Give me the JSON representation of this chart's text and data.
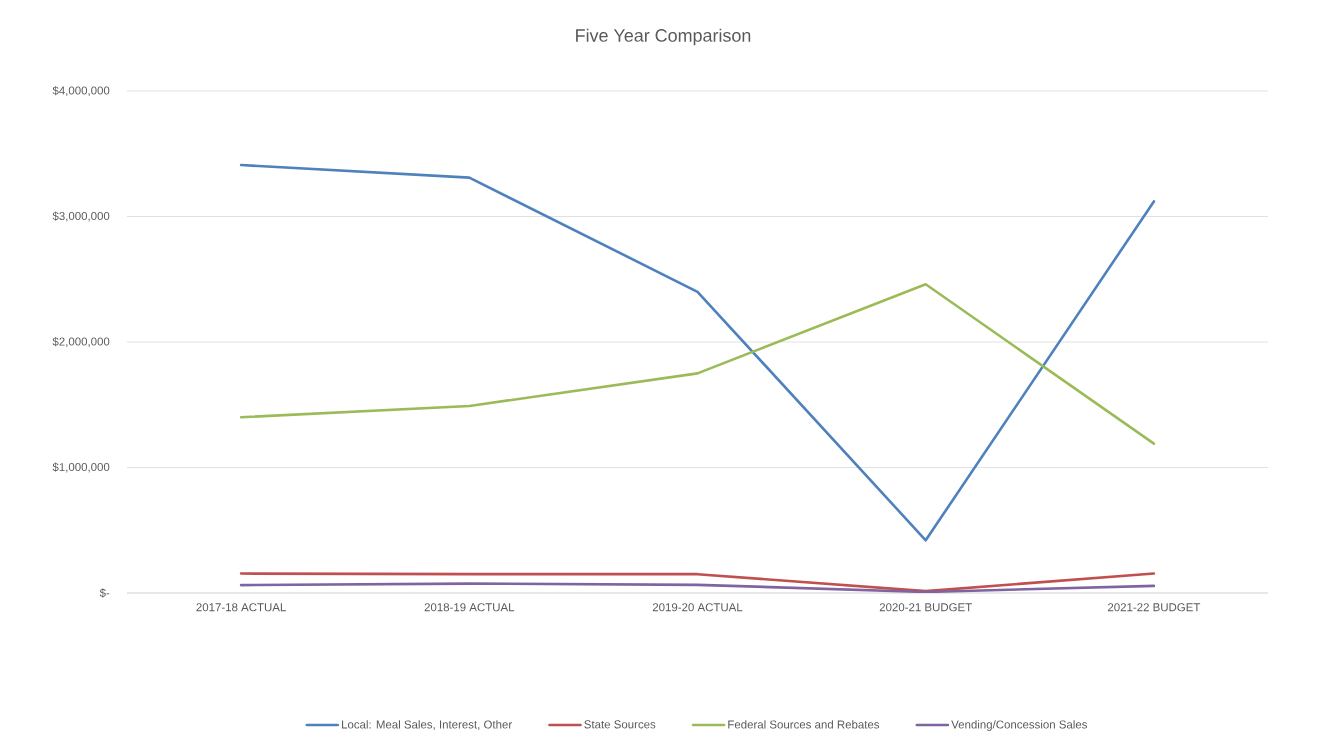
{
  "chart_data": {
    "type": "line",
    "title": "Five Year Comparison",
    "categories": [
      "2017-18 ACTUAL",
      "2018-19 ACTUAL",
      "2019-20 ACTUAL",
      "2020-21 BUDGET",
      "2021-22 BUDGET"
    ],
    "series": [
      {
        "name": "Local: Meal Sales, Interest, Other",
        "color": "#4F81BD",
        "values": [
          3410000,
          3310000,
          2400000,
          420000,
          3120000
        ]
      },
      {
        "name": "State Sources",
        "color": "#C0504D",
        "values": [
          155000,
          150000,
          150000,
          15000,
          155000
        ]
      },
      {
        "name": "Federal Sources and Rebates",
        "color": "#9BBB59",
        "values": [
          1400000,
          1490000,
          1750000,
          2460000,
          1190000
        ]
      },
      {
        "name": "Vending/Concession Sales",
        "color": "#8064A2",
        "values": [
          63000,
          75000,
          65000,
          8000,
          57000
        ]
      }
    ],
    "ylim": [
      0,
      4000000
    ],
    "yticks": [
      {
        "value": 0,
        "label": "$-"
      },
      {
        "value": 1000000,
        "label": "$1,000,000"
      },
      {
        "value": 2000000,
        "label": "$2,000,000"
      },
      {
        "value": 3000000,
        "label": "$3,000,000"
      },
      {
        "value": 4000000,
        "label": "$4,000,000"
      }
    ],
    "grid": "y",
    "legend": "bottom",
    "marker": "none",
    "line_style": "solid"
  }
}
